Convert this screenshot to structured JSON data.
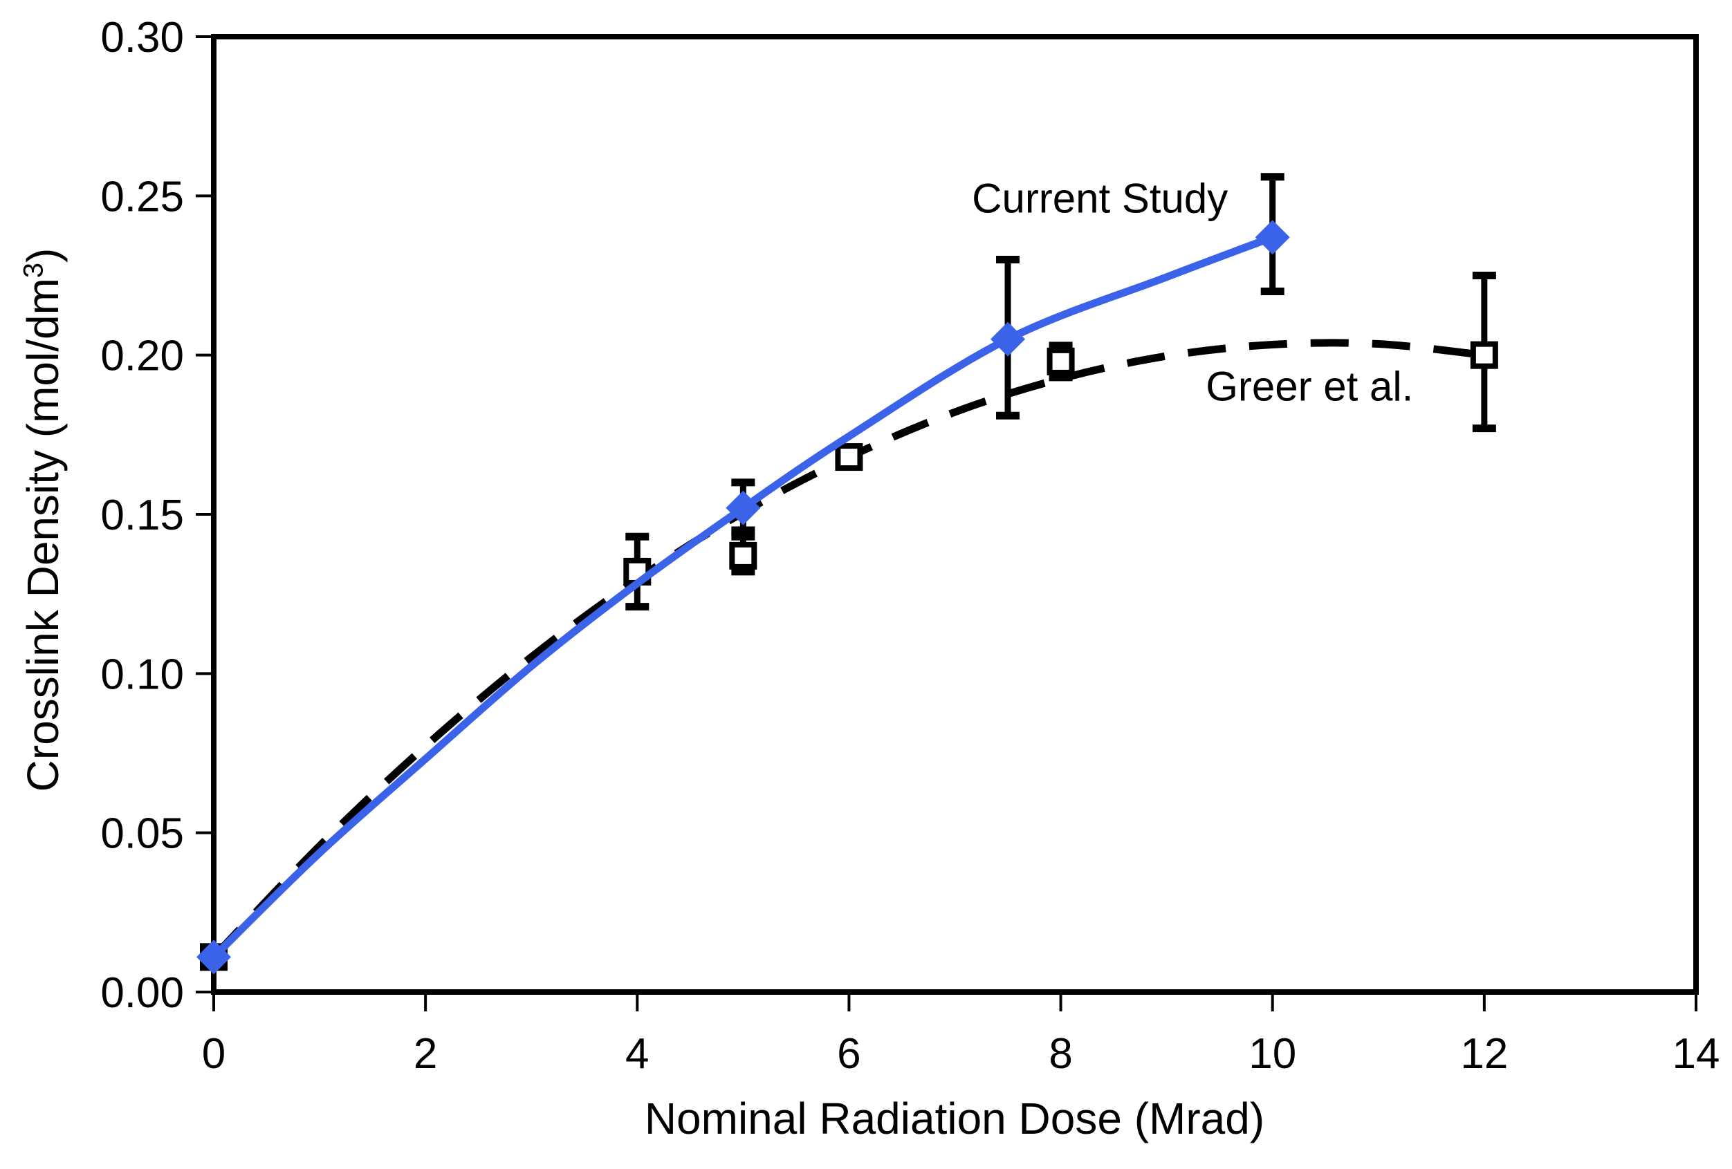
{
  "chart_data": {
    "type": "line",
    "title": "",
    "xlabel": "Nominal Radiation Dose (Mrad)",
    "ylabel_prefix": "Crosslink Density (mol/dm",
    "ylabel_sup": "3",
    "ylabel_suffix": ")",
    "xlim": [
      0,
      14
    ],
    "ylim": [
      0,
      0.3
    ],
    "x_ticks": [
      "0",
      "2",
      "4",
      "6",
      "8",
      "10",
      "12",
      "14"
    ],
    "y_ticks": [
      "0.00",
      "0.05",
      "0.10",
      "0.15",
      "0.20",
      "0.25",
      "0.30"
    ],
    "grid": false,
    "legend_position": "inline-annotations",
    "background_color": "#ffffff",
    "axis_color": "#000000",
    "series": [
      {
        "id": "greer",
        "name": "Greer et al.",
        "color": "#000000",
        "line": "dashed",
        "marker": "open-square",
        "trend": [
          [
            0,
            0.011
          ],
          [
            1,
            0.0459
          ],
          [
            2,
            0.0772
          ],
          [
            3,
            0.1052
          ],
          [
            4,
            0.1296
          ],
          [
            5,
            0.1506
          ],
          [
            6,
            0.168
          ],
          [
            7,
            0.1821
          ],
          [
            8,
            0.1926
          ],
          [
            9,
            0.1997
          ],
          [
            10,
            0.2033
          ],
          [
            11,
            0.2035
          ],
          [
            12,
            0.2
          ]
        ],
        "points": [
          {
            "x": 0,
            "y": 0.011
          },
          {
            "x": 4,
            "y": 0.132,
            "err_lo": 0.121,
            "err_hi": 0.143
          },
          {
            "x": 5,
            "y": 0.137,
            "err_lo": 0.132,
            "err_hi": 0.143
          },
          {
            "x": 6,
            "y": 0.168
          },
          {
            "x": 8,
            "y": 0.198,
            "err_lo": 0.193,
            "err_hi": 0.203
          },
          {
            "x": 12,
            "y": 0.2,
            "err_lo": 0.177,
            "err_hi": 0.225
          }
        ]
      },
      {
        "id": "current-study",
        "name": "Current Study",
        "color": "#3B63EA",
        "line": "solid",
        "marker": "diamond",
        "trend": [
          [
            0,
            0.011
          ],
          [
            1,
            0.0437
          ],
          [
            2,
            0.0732
          ],
          [
            3,
            0.1023
          ],
          [
            4,
            0.1283
          ],
          [
            5,
            0.152
          ],
          [
            6,
            0.1745
          ],
          [
            7.5,
            0.205
          ],
          [
            9,
            0.2245
          ],
          [
            10,
            0.237
          ]
        ],
        "points": [
          {
            "x": 0,
            "y": 0.011
          },
          {
            "x": 5,
            "y": 0.152,
            "err_lo": 0.145,
            "err_hi": 0.16
          },
          {
            "x": 7.5,
            "y": 0.205,
            "err_lo": 0.181,
            "err_hi": 0.23
          },
          {
            "x": 10,
            "y": 0.237,
            "err_lo": 0.22,
            "err_hi": 0.256
          }
        ]
      }
    ],
    "annotations": [
      {
        "text": "Current Study",
        "x": 8.37,
        "y": 0.2492,
        "for_series": "current-study"
      },
      {
        "text": "Greer et al.",
        "x": 10.35,
        "y": 0.1902,
        "for_series": "greer"
      }
    ]
  }
}
